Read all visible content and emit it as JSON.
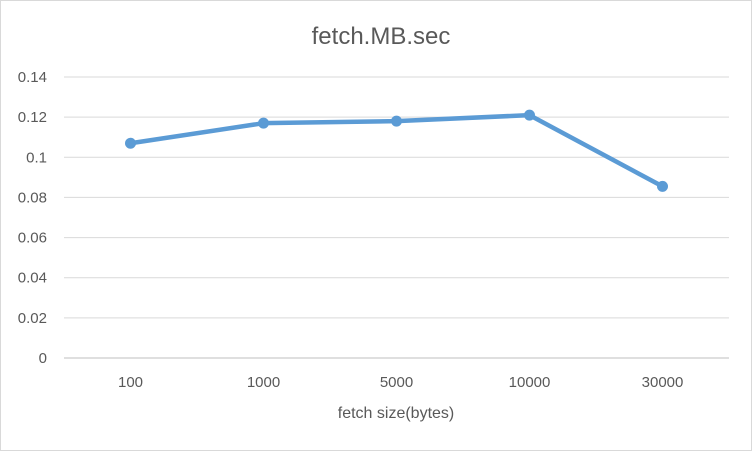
{
  "chart_data": {
    "type": "line",
    "title": "fetch.MB.sec",
    "xlabel": "fetch size(bytes)",
    "ylabel": "",
    "categories": [
      "100",
      "1000",
      "5000",
      "10000",
      "30000"
    ],
    "series": [
      {
        "values": [
          0.107,
          0.117,
          0.118,
          0.121,
          0.0855
        ],
        "color": "#5b9bd5"
      }
    ],
    "ylim": [
      0,
      0.14
    ],
    "yticks": [
      "0",
      "0.02",
      "0.04",
      "0.06",
      "0.08",
      "0.1",
      "0.12",
      "0.14"
    ],
    "grid": true,
    "legend": "none"
  }
}
